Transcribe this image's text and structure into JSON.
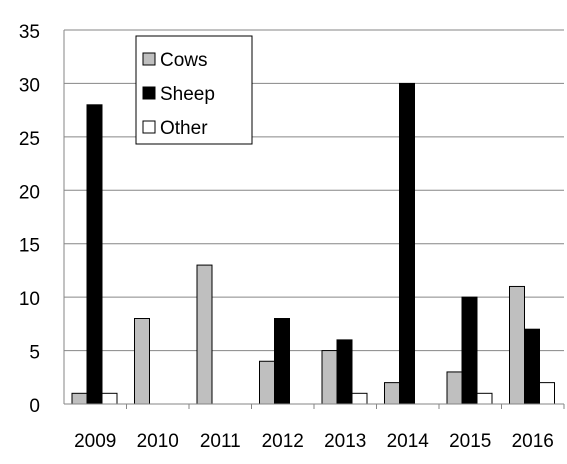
{
  "chart_data": {
    "type": "bar",
    "title": "",
    "xlabel": "",
    "ylabel": "",
    "categories": [
      "2009",
      "2010",
      "2011",
      "2012",
      "2013",
      "2014",
      "2015",
      "2016"
    ],
    "series": [
      {
        "name": "Cows",
        "values": [
          1,
          8,
          13,
          4,
          5,
          2,
          3,
          11
        ],
        "color": "#bfbfbf"
      },
      {
        "name": "Sheep",
        "values": [
          28,
          0,
          0,
          8,
          6,
          30,
          10,
          7
        ],
        "color": "#000000"
      },
      {
        "name": "Other",
        "values": [
          1,
          0,
          0,
          0,
          1,
          0,
          1,
          2
        ],
        "color": "#ffffff"
      }
    ],
    "ylim": [
      0,
      35
    ],
    "yticks": [
      "0",
      "5",
      "10",
      "15",
      "20",
      "25",
      "30",
      "35"
    ],
    "grid": true,
    "legend_position": "top-left"
  }
}
